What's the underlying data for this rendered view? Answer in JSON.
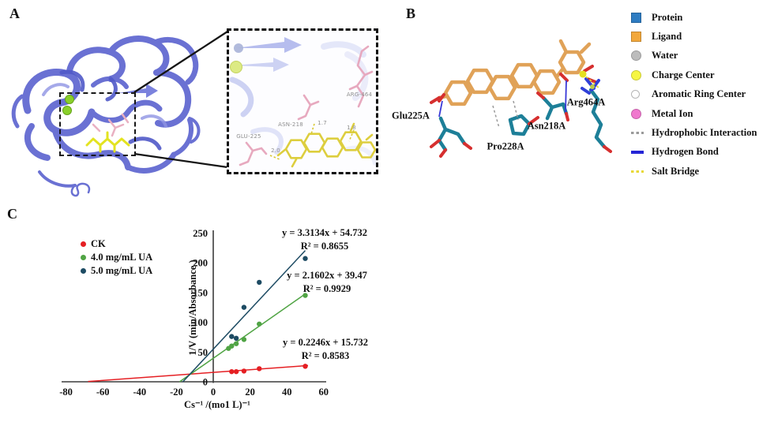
{
  "panels": {
    "a": {
      "label": "A",
      "inset": {
        "residue_labels": {
          "glu": "GLU-225",
          "asn": "ASN-218",
          "arg": "ARG-464"
        },
        "distance_labels": {
          "glu": "2.0",
          "asn": "1.7",
          "arg": "1.8"
        }
      }
    },
    "b": {
      "label": "B",
      "residue_labels": {
        "glu": "Glu225A",
        "pro": "Pro228A",
        "asn": "Asn218A",
        "arg": "Arg464A"
      },
      "legend": [
        {
          "label": "Protein",
          "icon": "square",
          "color": "#2e7cc2"
        },
        {
          "label": "Ligand",
          "icon": "square",
          "color": "#f2a83c"
        },
        {
          "label": "Water",
          "icon": "circle",
          "color": "#bcbcbc"
        },
        {
          "label": "Charge Center",
          "icon": "circle",
          "color": "#f6f642"
        },
        {
          "label": "Aromatic Ring Center",
          "icon": "circle-outline",
          "color": "#ffffff"
        },
        {
          "label": "Metal Ion",
          "icon": "circle",
          "color": "#f078ce"
        },
        {
          "label": "Hydrophobic Interaction",
          "icon": "dashed-line",
          "color": "#9a9a9a"
        },
        {
          "label": "Hydrogen Bond",
          "icon": "solid-line",
          "color": "#2525d6"
        },
        {
          "label": "Salt Bridge",
          "icon": "dashed-line",
          "color": "#e8d838"
        }
      ]
    },
    "c": {
      "label": "C"
    }
  },
  "chart_data": {
    "type": "scatter",
    "title": "",
    "xlabel": "Cs⁻¹ /(mo1 L)⁻¹",
    "ylabel": "1/V (min/Absorbance )",
    "xlim": [
      -80,
      60
    ],
    "ylim": [
      0,
      250
    ],
    "xticks": [
      -80,
      -60,
      -40,
      -20,
      0,
      20,
      40,
      60
    ],
    "yticks": [
      0,
      50,
      100,
      150,
      200,
      250
    ],
    "grid": false,
    "legend_position": "upper-left",
    "series": [
      {
        "name": "CK",
        "color": "#e51f23",
        "points": [
          [
            10,
            17
          ],
          [
            12.5,
            17
          ],
          [
            16.7,
            18
          ],
          [
            25,
            22
          ],
          [
            50,
            26
          ]
        ],
        "fit": {
          "equation": "y = 0.2246x + 15.732",
          "r2_text": "R² = 0.8583",
          "slope": 0.2246,
          "intercept": 15.732,
          "r2": 0.8583,
          "line_x": [
            -68,
            51.5
          ]
        }
      },
      {
        "name": "4.0 mg/mL UA",
        "color": "#50a444",
        "points": [
          [
            8.3,
            56
          ],
          [
            10,
            60
          ],
          [
            12.5,
            64
          ],
          [
            16.7,
            71
          ],
          [
            25,
            97
          ],
          [
            50,
            145
          ]
        ],
        "fit": {
          "equation": "y = 2.1602x + 39.47",
          "r2_text": "R² = 0.9929",
          "slope": 2.1602,
          "intercept": 39.47,
          "r2": 0.9929,
          "line_x": [
            -18.3,
            50.3
          ]
        }
      },
      {
        "name": "5.0 mg/mL UA",
        "color": "#1d4b63",
        "points": [
          [
            10,
            76
          ],
          [
            12.5,
            73
          ],
          [
            16.7,
            125
          ],
          [
            25,
            167
          ],
          [
            50,
            207
          ]
        ],
        "fit": {
          "equation": "y = 3.3134x + 54.732",
          "r2_text": "R² = 0.8655",
          "slope": 3.3134,
          "intercept": 54.732,
          "r2": 0.8655,
          "line_x": [
            -16.6,
            50
          ]
        }
      }
    ]
  }
}
